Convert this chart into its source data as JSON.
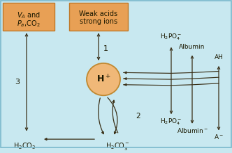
{
  "bg_color": "#c8e8f0",
  "border_color": "#7ab8cc",
  "box_fill": "#e8a055",
  "box_border": "#c07828",
  "circle_fill": "#f0b878",
  "circle_border": "#c08830",
  "arrow_color": "#3a3018",
  "text_color": "#1a1800",
  "label3": "3",
  "label1": "1",
  "label2": "2"
}
